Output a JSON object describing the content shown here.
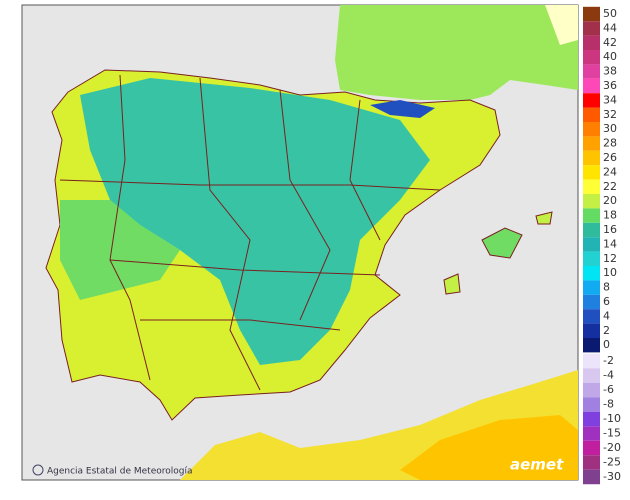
{
  "legend": {
    "upper": [
      {
        "label": 50,
        "color": "#8b3a0f"
      },
      {
        "label": 44,
        "color": "#a3304a"
      },
      {
        "label": 42,
        "color": "#b8306a"
      },
      {
        "label": 40,
        "color": "#cc3680"
      },
      {
        "label": 38,
        "color": "#e040a0"
      },
      {
        "label": 36,
        "color": "#ff48b8"
      },
      {
        "label": 34,
        "color": "#ff0000"
      },
      {
        "label": 32,
        "color": "#ff5a00"
      },
      {
        "label": 30,
        "color": "#ff8000"
      },
      {
        "label": 28,
        "color": "#ffa200"
      },
      {
        "label": 26,
        "color": "#ffc400"
      },
      {
        "label": 24,
        "color": "#ffe400"
      },
      {
        "label": 22,
        "color": "#ffff38"
      },
      {
        "label": 20,
        "color": "#c4f046"
      },
      {
        "label": 18,
        "color": "#64dc64"
      },
      {
        "label": 16,
        "color": "#30bc9c"
      },
      {
        "label": 14,
        "color": "#22b4b4"
      },
      {
        "label": 12,
        "color": "#22d2d2"
      },
      {
        "label": 10,
        "color": "#00e4f4"
      },
      {
        "label": 8,
        "color": "#12aaf0"
      },
      {
        "label": 6,
        "color": "#2080e0"
      },
      {
        "label": 4,
        "color": "#2050c0"
      },
      {
        "label": 2,
        "color": "#1430a0"
      },
      {
        "label": 0,
        "color": "#0a1a70"
      }
    ],
    "lower": [
      {
        "label": -2,
        "color": "#ece4fa"
      },
      {
        "label": -4,
        "color": "#d8c8f0"
      },
      {
        "label": -6,
        "color": "#c0a8e8"
      },
      {
        "label": -8,
        "color": "#a080e0"
      },
      {
        "label": -10,
        "color": "#8040e0"
      },
      {
        "label": -15,
        "color": "#a030c0"
      },
      {
        "label": -20,
        "color": "#c020a0"
      },
      {
        "label": -25,
        "color": "#a03080"
      },
      {
        "label": -30,
        "color": "#804090"
      }
    ]
  },
  "credit": "Agencia Estatal de Meteorología",
  "logo": "aemet"
}
